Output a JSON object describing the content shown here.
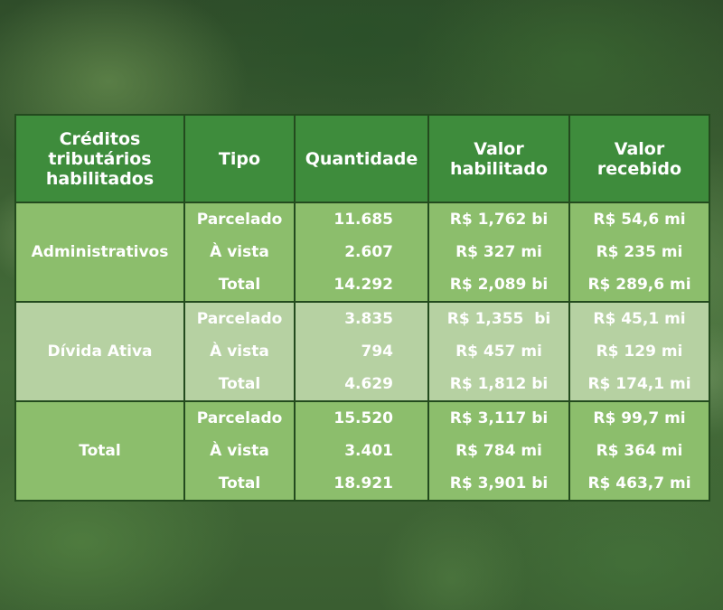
{
  "header": {
    "col1": [
      "Créditos",
      "tributários",
      "habilitados"
    ],
    "col2": "Tipo",
    "col3": "Quantidade",
    "col4": [
      "Valor",
      "habilitado"
    ],
    "col5": [
      "Valor",
      "recebido"
    ]
  },
  "groups": [
    {
      "label": "Administrativos",
      "rows": [
        {
          "tipo": "Parcelado",
          "quantidade": "11.685",
          "habilitado": "R$ 1,762 bi",
          "recebido": "R$ 54,6 mi"
        },
        {
          "tipo": "À vista",
          "quantidade": "2.607",
          "habilitado": "R$ 327 mi",
          "recebido": "R$ 235 mi"
        },
        {
          "tipo": "Total",
          "quantidade": "14.292",
          "habilitado": "R$ 2,089 bi",
          "recebido": "R$ 289,6 mi"
        }
      ]
    },
    {
      "label": "Dívida Ativa",
      "rows": [
        {
          "tipo": "Parcelado",
          "quantidade": "3.835",
          "habilitado": "R$ 1,355  bi",
          "recebido": "R$ 45,1 mi"
        },
        {
          "tipo": "À vista",
          "quantidade": "794",
          "habilitado": "R$ 457 mi",
          "recebido": "R$ 129 mi"
        },
        {
          "tipo": "Total",
          "quantidade": "4.629",
          "habilitado": "R$ 1,812 bi",
          "recebido": "R$ 174,1 mi"
        }
      ]
    },
    {
      "label": "Total",
      "rows": [
        {
          "tipo": "Parcelado",
          "quantidade": "15.520",
          "habilitado": "R$ 3,117 bi",
          "recebido": "R$ 99,7 mi"
        },
        {
          "tipo": "À vista",
          "quantidade": "3.401",
          "habilitado": "R$ 784 mi",
          "recebido": "R$ 364 mi"
        },
        {
          "tipo": "Total",
          "quantidade": "18.921",
          "habilitado": "R$ 3,901 bi",
          "recebido": "R$ 463,7 mi"
        }
      ]
    }
  ],
  "colors": {
    "header_bg": "#3e8c3c",
    "group_light_green": "#8cbe6c",
    "group_pale_green": "#b6d1a2",
    "border": "#234a1e",
    "text": "#ffffff"
  }
}
